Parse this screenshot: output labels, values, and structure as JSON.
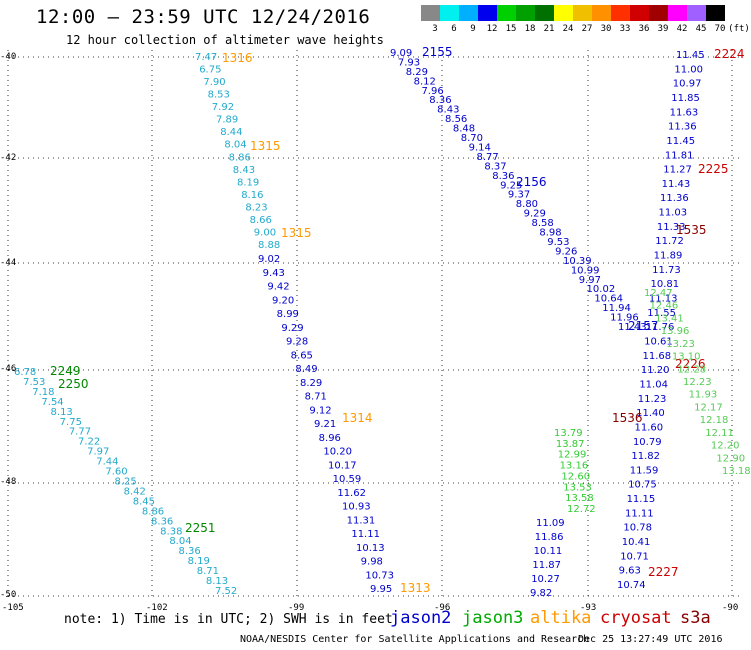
{
  "header": {
    "title": "12:00 – 23:59 UTC 12/24/2016",
    "subtitle": "12 hour collection of altimeter wave heights"
  },
  "colorbar": {
    "colors": [
      "#888888",
      "#00f0f0",
      "#00b0ff",
      "#0000ee",
      "#00d000",
      "#00a000",
      "#007000",
      "#ffff00",
      "#f0c000",
      "#ff9000",
      "#ff3000",
      "#d00000",
      "#a00000",
      "#ff00ff",
      "#a060ff",
      "#000000"
    ],
    "labels": [
      "3",
      "6",
      "9",
      "12",
      "15",
      "18",
      "21",
      "24",
      "27",
      "30",
      "33",
      "36",
      "39",
      "42",
      "45",
      "70",
      "(ft)"
    ]
  },
  "axes": {
    "lat_labels": [
      "-40",
      "-42",
      "-44",
      "-46",
      "-48",
      "-50"
    ],
    "lon_labels": [
      "-105",
      "-102",
      "-99",
      "-96",
      "-93",
      "-90"
    ]
  },
  "tracks": [
    {
      "id": "cyan1",
      "color": "#22aacc",
      "values": [
        "7.47",
        "6.75",
        "7.90",
        "8.53",
        "7.92",
        "7.89",
        "8.44",
        "8.04",
        "8.86",
        "8.43",
        "8.19",
        "8.16",
        "8.23",
        "8.66",
        "9.00",
        "8.88"
      ],
      "times": [
        {
          "label": "1316",
          "color": "#ff9900"
        },
        {
          "label": "1315",
          "color": "#ff9900"
        },
        {
          "label": "1315",
          "color": "#ff9900"
        }
      ]
    },
    {
      "id": "blue1",
      "color": "#0000cc",
      "values": [
        "9.02",
        "9.43",
        "9.42",
        "9.20",
        "8.99",
        "9.29",
        "9.28",
        "8.65",
        "8.49",
        "8.29",
        "8.71",
        "9.12",
        "9.21",
        "8.96",
        "10.20",
        "10.17",
        "10.59",
        "11.62",
        "10.93",
        "11.31",
        "11.11",
        "10.13",
        "9.98",
        "10.73",
        "9.95"
      ],
      "times": [
        {
          "label": "1314",
          "color": "#ff9900"
        },
        {
          "label": "1313",
          "color": "#ff9900"
        }
      ]
    },
    {
      "id": "blue2",
      "color": "#0000cc",
      "values": [
        "9.09",
        "7.93",
        "8.29",
        "8.12",
        "7.96",
        "8.36",
        "8.43",
        "8.56",
        "8.48",
        "8.70",
        "9.14",
        "8.77",
        "8.37",
        "8.36",
        "9.25",
        "9.37",
        "8.80",
        "9.29",
        "8.58",
        "8.98",
        "9.53",
        "9.26",
        "10.39",
        "10.99",
        "9.97",
        "10.02",
        "10.64",
        "11.94",
        "11.96",
        "11.43"
      ],
      "times": [
        {
          "label": "2155",
          "color": "#0000cc"
        },
        {
          "label": "2156",
          "color": "#0000cc"
        },
        {
          "label": "2157",
          "color": "#0000cc"
        }
      ]
    },
    {
      "id": "cyan2",
      "color": "#22aacc",
      "values": [
        "6.78",
        "7.53",
        "7.18",
        "7.54",
        "8.13",
        "7.75",
        "7.77",
        "7.22",
        "7.97",
        "7.44",
        "7.60",
        "8.25",
        "8.42",
        "8.45",
        "8.86",
        "8.36",
        "8.38",
        "8.04",
        "8.36",
        "8.19",
        "8.71",
        "8.13",
        "7.52"
      ],
      "times": [
        {
          "label": "2249",
          "color": "#008800"
        },
        {
          "label": "2250",
          "color": "#008800"
        },
        {
          "label": "2251",
          "color": "#008800"
        }
      ]
    },
    {
      "id": "green1",
      "color": "#33cc33",
      "values": [
        "13.79",
        "13.87",
        "12.99",
        "13.16",
        "12.60",
        "13.53",
        "13.58",
        "12.72"
      ],
      "times": []
    },
    {
      "id": "blue3",
      "color": "#0000cc",
      "values": [
        "11.09",
        "11.86",
        "10.11",
        "11.87",
        "10.27",
        "9.82"
      ],
      "times": []
    },
    {
      "id": "blue4",
      "color": "#0000cc",
      "values": [
        "11.45",
        "11.00",
        "10.97",
        "11.85",
        "11.63",
        "11.36",
        "11.45",
        "11.81",
        "11.27",
        "11.43",
        "11.36",
        "11.03",
        "11.33",
        "11.72",
        "11.89",
        "11.73",
        "10.81",
        "11.13",
        "11.55",
        "11.76",
        "10.61",
        "11.68",
        "11.20",
        "11.04",
        "11.23",
        "11.40",
        "11.60",
        "10.79",
        "11.82",
        "11.59",
        "10.75",
        "11.15",
        "11.11",
        "10.78",
        "10.41",
        "10.71",
        "9.63",
        "10.74"
      ],
      "times": [
        {
          "label": "2224",
          "color": "#cc0000"
        },
        {
          "label": "2225",
          "color": "#cc0000"
        },
        {
          "label": "2226",
          "color": "#cc0000"
        },
        {
          "label": "2227",
          "color": "#cc0000"
        }
      ]
    },
    {
      "id": "green2",
      "color": "#55cc55",
      "values": [
        "12.47",
        "12.46",
        "13.41",
        "13.96",
        "13.23",
        "13.10",
        "12.28",
        "12.23",
        "11.93",
        "12.17",
        "12.18",
        "12.11",
        "12.20",
        "12.90",
        "13.18"
      ],
      "times": [
        {
          "label": "1535",
          "color": "#880000"
        },
        {
          "label": "1536",
          "color": "#880000"
        }
      ]
    }
  ],
  "footer": {
    "note": "note: 1) Time is in UTC; 2) SWH is in feet",
    "legend": [
      {
        "label": "jason2",
        "color": "#0000cc"
      },
      {
        "label": "jason3",
        "color": "#00aa00"
      },
      {
        "label": "altika",
        "color": "#ff9900"
      },
      {
        "label": "cryosat",
        "color": "#cc0000"
      },
      {
        "label": "s3a",
        "color": "#880000"
      }
    ],
    "credit": "NOAA/NESDIS Center for Satellite Applications and Research",
    "timestamp": "Dec 25 13:27:49 UTC 2016"
  }
}
